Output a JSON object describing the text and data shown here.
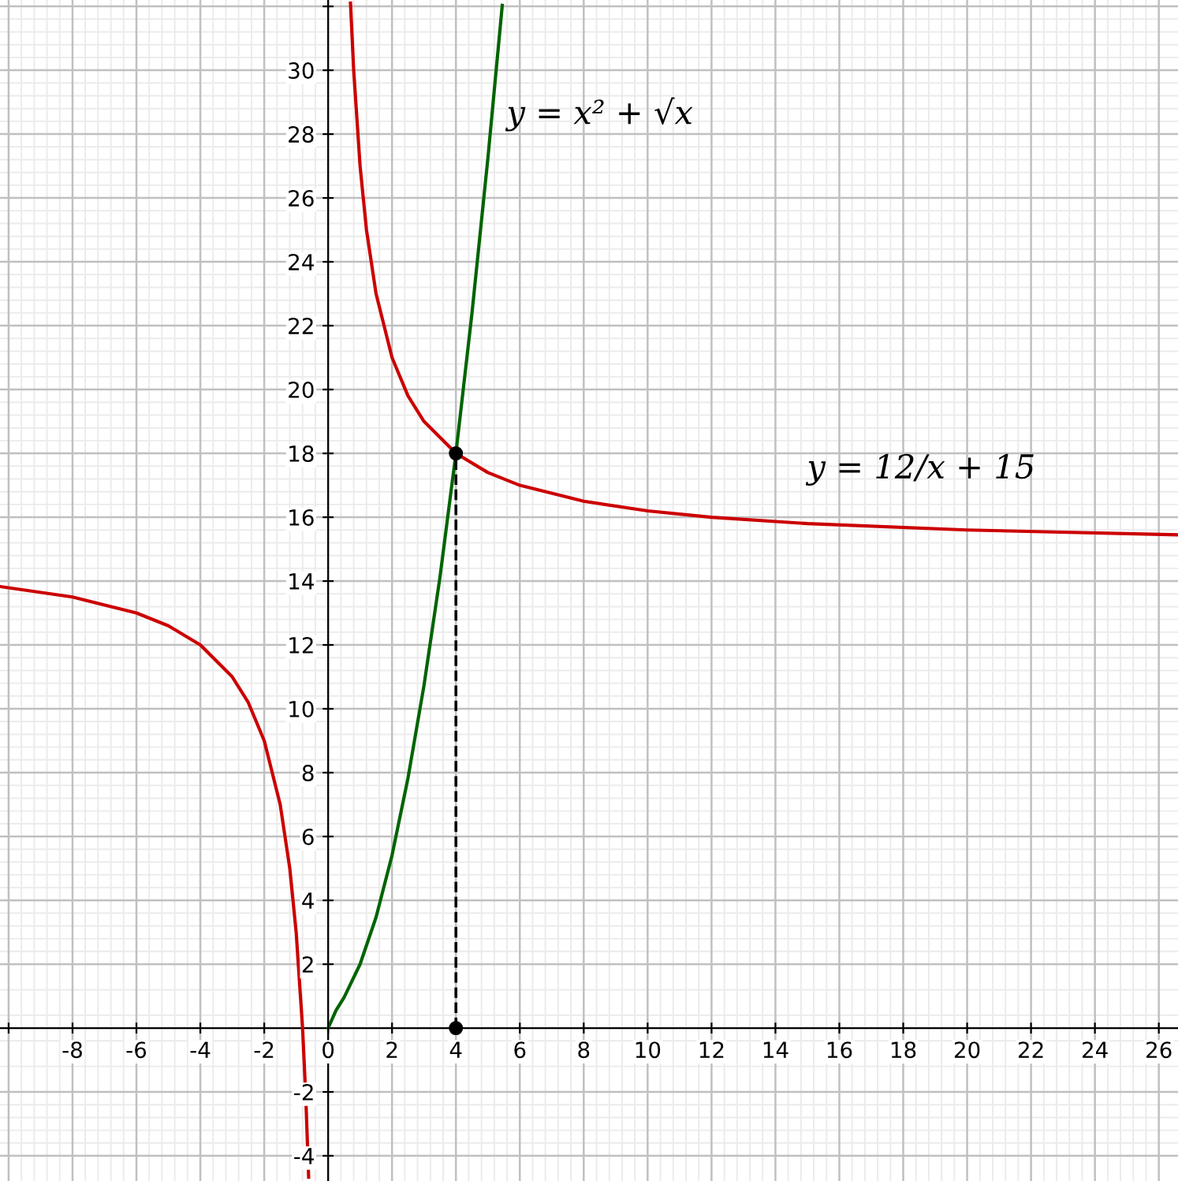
{
  "chart_data": {
    "type": "line",
    "series": [
      {
        "color": "#cc0000",
        "x": [
          0.7,
          0.8,
          1,
          1.2,
          1.5,
          2,
          2.5,
          3,
          4,
          5,
          6,
          8,
          10,
          12,
          15,
          20,
          26.6
        ],
        "values": [
          32.1,
          30,
          27,
          25,
          23,
          21,
          19.8,
          19,
          18,
          17.4,
          17,
          16.5,
          16.2,
          16,
          15.8,
          15.6,
          15.45
        ]
      },
      {
        "color": "#cc0000",
        "x": [
          -10.27,
          -8,
          -6,
          -5,
          -4,
          -3,
          -2.5,
          -2,
          -1.5,
          -1.2,
          -1,
          -0.8,
          -0.7,
          -0.61
        ],
        "values": [
          13.83,
          13.5,
          13,
          12.6,
          12,
          11,
          10.2,
          9,
          7,
          5,
          3,
          0,
          -2.14,
          -4.67
        ]
      },
      {
        "color": "#006400",
        "x": [
          0,
          0.25,
          0.5,
          1,
          1.5,
          2,
          2.5,
          3,
          3.5,
          4,
          4.5,
          5,
          5.45
        ],
        "values": [
          0,
          0.56,
          0.96,
          2,
          3.47,
          5.41,
          7.83,
          10.73,
          14.12,
          18,
          22.37,
          27.24,
          32.03
        ]
      },
      {
        "color": "#000000",
        "line_style": "dashed",
        "x": [
          4,
          4
        ],
        "values": [
          0,
          18
        ]
      },
      {
        "type": "scatter",
        "marker": "circle",
        "color": "#000000",
        "x": [
          4,
          4
        ],
        "values": [
          18,
          0
        ]
      }
    ],
    "annotations": [
      "y = x² + √x",
      "y = 12/x + 15"
    ],
    "xlim": [
      -10.27,
      26.6
    ],
    "ylim": [
      -4.79,
      32.2
    ],
    "xticks": [
      {
        "value": -10,
        "label": null
      },
      -8,
      -6,
      -4,
      -2,
      0,
      2,
      4,
      6,
      8,
      10,
      12,
      14,
      16,
      18,
      20,
      22,
      24,
      26
    ],
    "yticks": [
      -4,
      -2,
      2,
      4,
      6,
      8,
      10,
      12,
      14,
      16,
      18,
      20,
      22,
      24,
      26,
      28,
      30,
      {
        "value": 32,
        "label": null
      }
    ],
    "grid": true,
    "legend": false,
    "marker": "none",
    "line_style": "solid"
  }
}
